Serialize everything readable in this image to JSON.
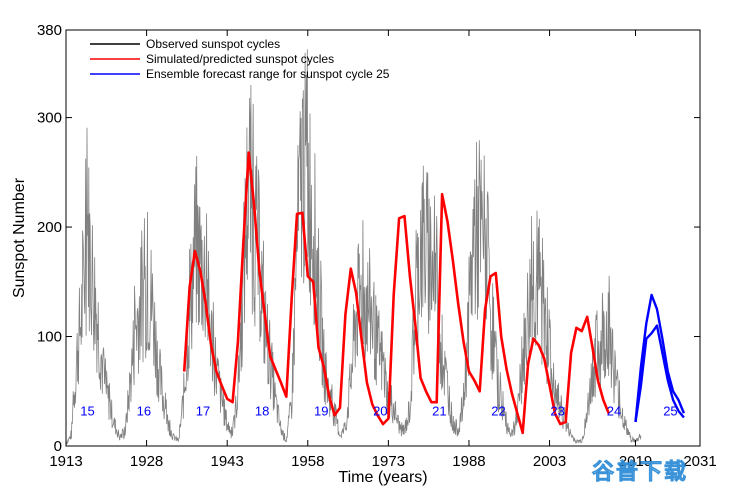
{
  "chart_data": {
    "type": "line",
    "title": "",
    "xlabel": "Time (years)",
    "ylabel": "Sunspot Number",
    "xlim": [
      1913,
      2031
    ],
    "ylim": [
      0,
      380
    ],
    "x_ticks": [
      "1913",
      "1928",
      "1943",
      "1958",
      "1973",
      "1988",
      "2003",
      "2019",
      "2031"
    ],
    "x_tick_values": [
      1913,
      1928,
      1943,
      1958,
      1973,
      1988,
      2003,
      2019,
      2031
    ],
    "y_ticks": [
      "0",
      "100",
      "200",
      "300",
      "380"
    ],
    "y_tick_values": [
      0,
      100,
      200,
      300,
      380
    ],
    "legend": {
      "position": "top-left",
      "entries": [
        {
          "label": "Observed sunspot cycles",
          "color": "#000000"
        },
        {
          "label": "Simulated/predicted sunspot cycles",
          "color": "#ff0000"
        },
        {
          "label": "Ensemble forecast range for sunspot cycle 25",
          "color": "#0000ff"
        }
      ]
    },
    "cycle_labels": [
      {
        "label": "15",
        "x": 1917,
        "y": 28
      },
      {
        "label": "16",
        "x": 1927.5,
        "y": 28
      },
      {
        "label": "17",
        "x": 1938.5,
        "y": 28
      },
      {
        "label": "18",
        "x": 1949.5,
        "y": 28
      },
      {
        "label": "19",
        "x": 1960.5,
        "y": 28
      },
      {
        "label": "20",
        "x": 1971.5,
        "y": 28
      },
      {
        "label": "21",
        "x": 1982.5,
        "y": 28
      },
      {
        "label": "22",
        "x": 1993.5,
        "y": 28
      },
      {
        "label": "23",
        "x": 2004.5,
        "y": 28
      },
      {
        "label": "24",
        "x": 2015,
        "y": 28
      },
      {
        "label": "25",
        "x": 2025.5,
        "y": 28
      }
    ],
    "series": [
      {
        "name": "Observed sunspot cycles",
        "color": "#808080",
        "envelope": [
          [
            1913,
            2
          ],
          [
            1914,
            10
          ],
          [
            1915,
            80
          ],
          [
            1916,
            125
          ],
          [
            1917,
            200
          ],
          [
            1918,
            150
          ],
          [
            1919,
            110
          ],
          [
            1920,
            60
          ],
          [
            1921,
            40
          ],
          [
            1922,
            20
          ],
          [
            1923,
            8
          ],
          [
            1924,
            12
          ],
          [
            1925,
            60
          ],
          [
            1926,
            110
          ],
          [
            1927,
            130
          ],
          [
            1928,
            145
          ],
          [
            1929,
            130
          ],
          [
            1930,
            80
          ],
          [
            1931,
            45
          ],
          [
            1932,
            20
          ],
          [
            1933,
            8
          ],
          [
            1934,
            5
          ],
          [
            1935,
            50
          ],
          [
            1936,
            120
          ],
          [
            1937,
            180
          ],
          [
            1938,
            170
          ],
          [
            1939,
            150
          ],
          [
            1940,
            100
          ],
          [
            1941,
            70
          ],
          [
            1942,
            40
          ],
          [
            1943,
            20
          ],
          [
            1944,
            10
          ],
          [
            1945,
            50
          ],
          [
            1946,
            150
          ],
          [
            1947,
            250
          ],
          [
            1948,
            200
          ],
          [
            1949,
            170
          ],
          [
            1950,
            110
          ],
          [
            1951,
            80
          ],
          [
            1952,
            40
          ],
          [
            1953,
            15
          ],
          [
            1954,
            5
          ],
          [
            1955,
            40
          ],
          [
            1956,
            180
          ],
          [
            1957,
            260
          ],
          [
            1958,
            240
          ],
          [
            1959,
            210
          ],
          [
            1960,
            140
          ],
          [
            1961,
            75
          ],
          [
            1962,
            45
          ],
          [
            1963,
            30
          ],
          [
            1964,
            10
          ],
          [
            1965,
            15
          ],
          [
            1966,
            60
          ],
          [
            1967,
            120
          ],
          [
            1968,
            140
          ],
          [
            1969,
            130
          ],
          [
            1970,
            120
          ],
          [
            1971,
            85
          ],
          [
            1972,
            75
          ],
          [
            1973,
            40
          ],
          [
            1974,
            35
          ],
          [
            1975,
            18
          ],
          [
            1976,
            12
          ],
          [
            1977,
            35
          ],
          [
            1978,
            120
          ],
          [
            1979,
            190
          ],
          [
            1980,
            180
          ],
          [
            1981,
            170
          ],
          [
            1982,
            140
          ],
          [
            1983,
            80
          ],
          [
            1984,
            55
          ],
          [
            1985,
            20
          ],
          [
            1986,
            15
          ],
          [
            1987,
            40
          ],
          [
            1988,
            120
          ],
          [
            1989,
            200
          ],
          [
            1990,
            185
          ],
          [
            1991,
            190
          ],
          [
            1992,
            120
          ],
          [
            1993,
            70
          ],
          [
            1994,
            40
          ],
          [
            1995,
            20
          ],
          [
            1996,
            10
          ],
          [
            1997,
            25
          ],
          [
            1998,
            75
          ],
          [
            1999,
            120
          ],
          [
            2000,
            150
          ],
          [
            2001,
            140
          ],
          [
            2002,
            120
          ],
          [
            2003,
            80
          ],
          [
            2004,
            45
          ],
          [
            2005,
            35
          ],
          [
            2006,
            20
          ],
          [
            2007,
            10
          ],
          [
            2008,
            4
          ],
          [
            2009,
            5
          ],
          [
            2010,
            25
          ],
          [
            2011,
            70
          ],
          [
            2012,
            85
          ],
          [
            2013,
            95
          ],
          [
            2014,
            115
          ],
          [
            2015,
            70
          ],
          [
            2016,
            40
          ],
          [
            2017,
            20
          ],
          [
            2018,
            8
          ],
          [
            2019,
            4
          ],
          [
            2020,
            10
          ]
        ]
      },
      {
        "name": "Simulated/predicted sunspot cycles",
        "color": "#ff0000",
        "points": [
          [
            1935,
            68
          ],
          [
            1936,
            145
          ],
          [
            1937,
            178
          ],
          [
            1938,
            160
          ],
          [
            1939,
            130
          ],
          [
            1940,
            92
          ],
          [
            1941,
            68
          ],
          [
            1942,
            55
          ],
          [
            1943,
            43
          ],
          [
            1944,
            40
          ],
          [
            1945,
            95
          ],
          [
            1946,
            185
          ],
          [
            1947,
            268
          ],
          [
            1948,
            220
          ],
          [
            1949,
            160
          ],
          [
            1950,
            120
          ],
          [
            1951,
            82
          ],
          [
            1952,
            70
          ],
          [
            1953,
            58
          ],
          [
            1954,
            45
          ],
          [
            1955,
            135
          ],
          [
            1956,
            212
          ],
          [
            1957,
            213
          ],
          [
            1958,
            155
          ],
          [
            1959,
            150
          ],
          [
            1960,
            90
          ],
          [
            1961,
            72
          ],
          [
            1962,
            45
          ],
          [
            1963,
            28
          ],
          [
            1964,
            35
          ],
          [
            1965,
            120
          ],
          [
            1966,
            162
          ],
          [
            1967,
            140
          ],
          [
            1968,
            98
          ],
          [
            1969,
            58
          ],
          [
            1970,
            38
          ],
          [
            1971,
            28
          ],
          [
            1972,
            20
          ],
          [
            1973,
            25
          ],
          [
            1974,
            138
          ],
          [
            1975,
            208
          ],
          [
            1976,
            210
          ],
          [
            1977,
            155
          ],
          [
            1978,
            112
          ],
          [
            1979,
            62
          ],
          [
            1980,
            50
          ],
          [
            1981,
            40
          ],
          [
            1982,
            40
          ],
          [
            1983,
            230
          ],
          [
            1984,
            205
          ],
          [
            1985,
            170
          ],
          [
            1986,
            130
          ],
          [
            1987,
            95
          ],
          [
            1988,
            68
          ],
          [
            1989,
            60
          ],
          [
            1990,
            50
          ],
          [
            1991,
            125
          ],
          [
            1992,
            155
          ],
          [
            1993,
            158
          ],
          [
            1994,
            100
          ],
          [
            1995,
            70
          ],
          [
            1996,
            48
          ],
          [
            1997,
            30
          ],
          [
            1998,
            12
          ],
          [
            1999,
            75
          ],
          [
            2000,
            98
          ],
          [
            2001,
            92
          ],
          [
            2002,
            80
          ],
          [
            2003,
            55
          ],
          [
            2004,
            30
          ],
          [
            2005,
            20
          ],
          [
            2006,
            22
          ],
          [
            2007,
            85
          ],
          [
            2008,
            108
          ],
          [
            2009,
            105
          ],
          [
            2010,
            118
          ],
          [
            2011,
            90
          ],
          [
            2012,
            60
          ],
          [
            2013,
            42
          ],
          [
            2014,
            30
          ]
        ]
      },
      {
        "name": "Ensemble forecast range for sunspot cycle 25",
        "color": "#0000ff",
        "upper": [
          [
            2019,
            22
          ],
          [
            2020,
            72
          ],
          [
            2021,
            112
          ],
          [
            2022,
            138
          ],
          [
            2023,
            125
          ],
          [
            2024,
            98
          ],
          [
            2025,
            68
          ],
          [
            2026,
            50
          ],
          [
            2027,
            42
          ],
          [
            2028,
            30
          ]
        ],
        "lower": [
          [
            2019,
            22
          ],
          [
            2020,
            55
          ],
          [
            2021,
            98
          ],
          [
            2022,
            103
          ],
          [
            2023,
            110
          ],
          [
            2024,
            85
          ],
          [
            2025,
            60
          ],
          [
            2026,
            42
          ],
          [
            2027,
            32
          ],
          [
            2028,
            26
          ]
        ]
      }
    ]
  },
  "watermark": {
    "text": "谷普下载",
    "color": "#2a8ad6"
  }
}
